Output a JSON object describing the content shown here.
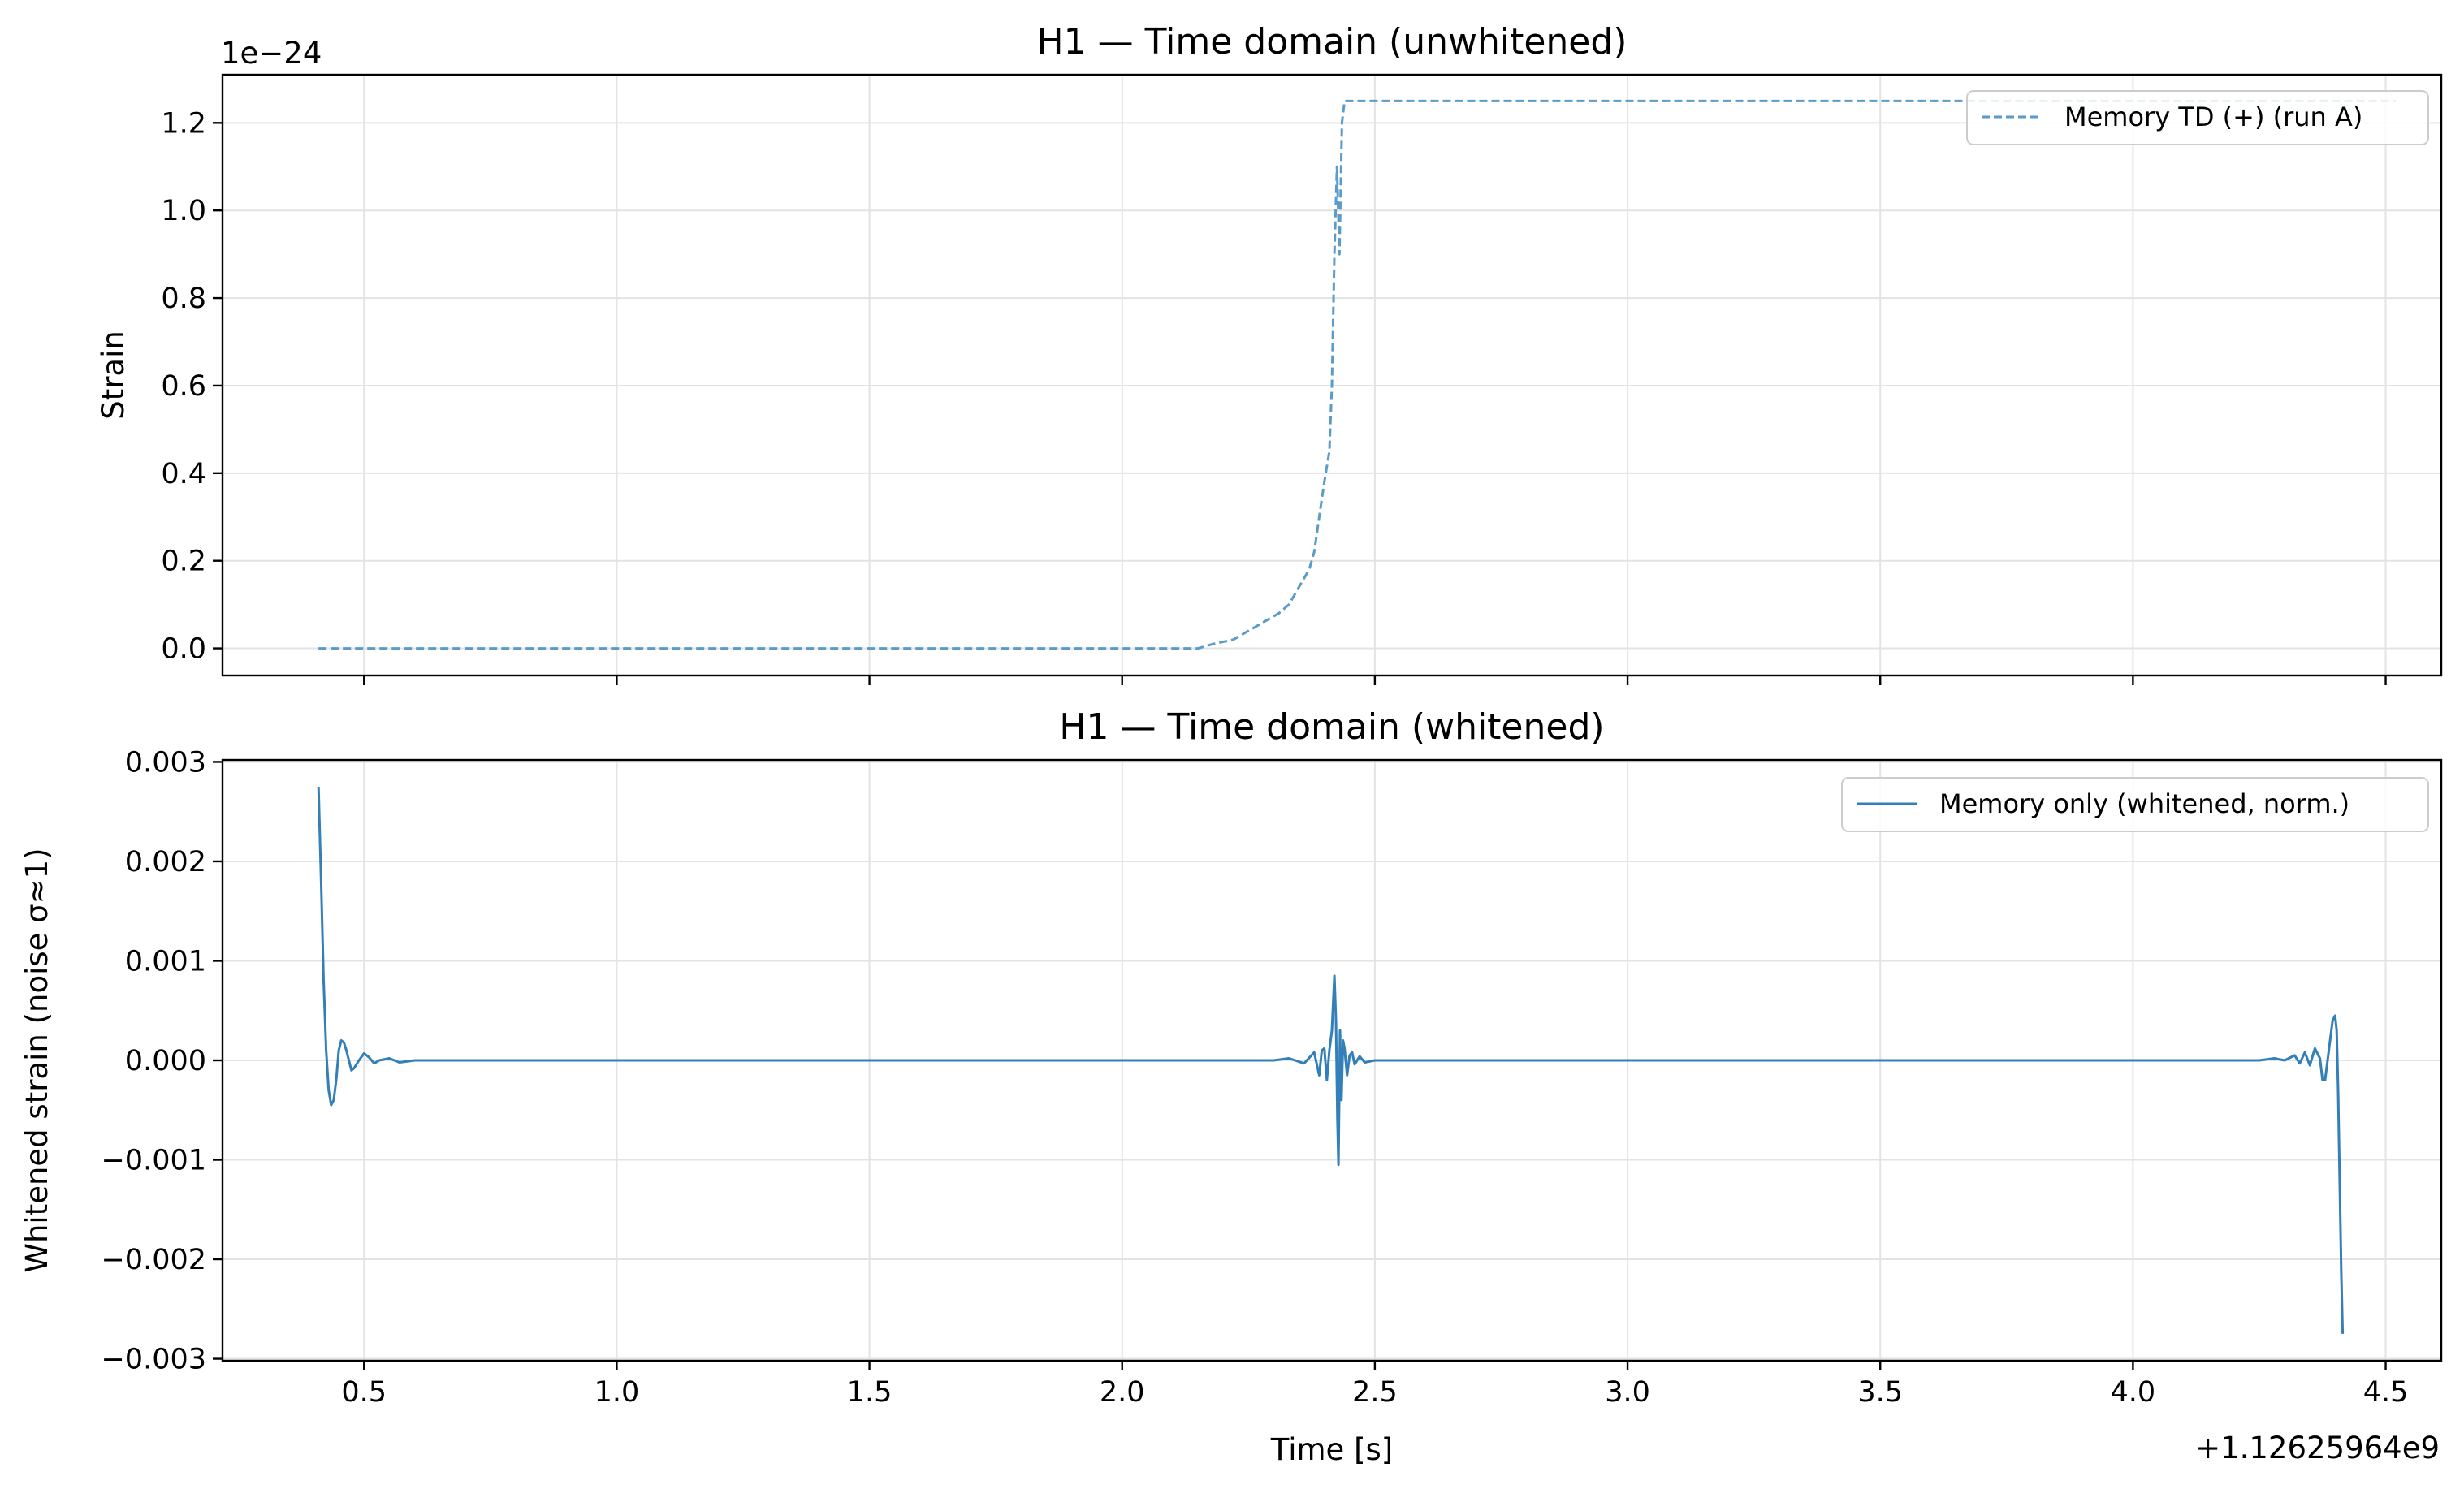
{
  "chart_data": [
    {
      "type": "line",
      "title": "H1 — Time domain (unwhitened)",
      "xlabel": "",
      "ylabel": "Strain",
      "y_scale_label": "1e−24",
      "xlim": [
        0.22,
        4.61
      ],
      "ylim": [
        -0.062,
        1.31
      ],
      "grid": true,
      "legend_position": "top-right",
      "x_ticks": [
        0.5,
        1.0,
        1.5,
        2.0,
        2.5,
        3.0,
        3.5,
        4.0,
        4.5
      ],
      "x_tick_labels_visible": false,
      "y_ticks": [
        0.0,
        0.2,
        0.4,
        0.6,
        0.8,
        1.0,
        1.2
      ],
      "y_tick_labels": [
        "0.0",
        "0.2",
        "0.4",
        "0.6",
        "0.8",
        "1.0",
        "1.2"
      ],
      "series": [
        {
          "name": "Memory TD (+) (run A)",
          "color": "#5b9bc8",
          "style": "dashed",
          "points": [
            [
              0.41,
              0.0
            ],
            [
              2.15,
              0.0
            ],
            [
              2.18,
              0.01
            ],
            [
              2.22,
              0.02
            ],
            [
              2.25,
              0.04
            ],
            [
              2.28,
              0.06
            ],
            [
              2.31,
              0.08
            ],
            [
              2.33,
              0.1
            ],
            [
              2.35,
              0.14
            ],
            [
              2.37,
              0.18
            ],
            [
              2.38,
              0.22
            ],
            [
              2.39,
              0.3
            ],
            [
              2.4,
              0.38
            ],
            [
              2.41,
              0.45
            ],
            [
              2.415,
              0.6
            ],
            [
              2.42,
              0.9
            ],
            [
              2.425,
              1.1
            ],
            [
              2.43,
              0.9
            ],
            [
              2.435,
              1.2
            ],
            [
              2.44,
              1.25
            ],
            [
              4.52,
              1.25
            ]
          ]
        }
      ]
    },
    {
      "type": "line",
      "title": "H1 — Time domain (whitened)",
      "xlabel": "Time [s]",
      "ylabel": "Whitened strain (noise σ≈1)",
      "x_offset_label": "+1.12625964e9",
      "xlim": [
        0.22,
        4.61
      ],
      "ylim": [
        -0.00302,
        0.00302
      ],
      "grid": true,
      "legend_position": "top-right",
      "x_ticks": [
        0.5,
        1.0,
        1.5,
        2.0,
        2.5,
        3.0,
        3.5,
        4.0,
        4.5
      ],
      "x_tick_labels": [
        "0.5",
        "1.0",
        "1.5",
        "2.0",
        "2.5",
        "3.0",
        "3.5",
        "4.0",
        "4.5"
      ],
      "y_ticks": [
        -0.003,
        -0.002,
        -0.001,
        0.0,
        0.001,
        0.002,
        0.003
      ],
      "y_tick_labels": [
        "−0.003",
        "−0.002",
        "−0.001",
        "0.000",
        "0.001",
        "0.002",
        "0.003"
      ],
      "series": [
        {
          "name": "Memory only (whitened, norm.)",
          "color": "#3380b8",
          "style": "solid",
          "points": [
            [
              0.41,
              0.00275
            ],
            [
              0.415,
              0.0018
            ],
            [
              0.42,
              0.0008
            ],
            [
              0.425,
              0.0001
            ],
            [
              0.43,
              -0.0003
            ],
            [
              0.435,
              -0.00045
            ],
            [
              0.44,
              -0.0004
            ],
            [
              0.445,
              -0.0002
            ],
            [
              0.45,
              0.0001
            ],
            [
              0.455,
              0.0002
            ],
            [
              0.46,
              0.00018
            ],
            [
              0.465,
              0.0001
            ],
            [
              0.47,
              0.0
            ],
            [
              0.475,
              -0.0001
            ],
            [
              0.48,
              -8e-05
            ],
            [
              0.49,
              0.0
            ],
            [
              0.5,
              7e-05
            ],
            [
              0.51,
              3e-05
            ],
            [
              0.52,
              -3e-05
            ],
            [
              0.53,
              0.0
            ],
            [
              0.55,
              2e-05
            ],
            [
              0.57,
              -2e-05
            ],
            [
              0.6,
              0.0
            ],
            [
              2.3,
              0.0
            ],
            [
              2.33,
              2e-05
            ],
            [
              2.36,
              -3e-05
            ],
            [
              2.38,
              8e-05
            ],
            [
              2.39,
              -0.00015
            ],
            [
              2.395,
              0.0001
            ],
            [
              2.4,
              0.00012
            ],
            [
              2.405,
              -0.0002
            ],
            [
              2.41,
              0.0001
            ],
            [
              2.415,
              0.0003
            ],
            [
              2.42,
              0.00085
            ],
            [
              2.423,
              0.0004
            ],
            [
              2.426,
              -0.0006
            ],
            [
              2.428,
              -0.00105
            ],
            [
              2.431,
              0.0003
            ],
            [
              2.434,
              -0.0004
            ],
            [
              2.437,
              0.0002
            ],
            [
              2.44,
              0.00012
            ],
            [
              2.445,
              -0.00015
            ],
            [
              2.45,
              5e-05
            ],
            [
              2.455,
              8e-05
            ],
            [
              2.46,
              -4e-05
            ],
            [
              2.47,
              4e-05
            ],
            [
              2.48,
              -2e-05
            ],
            [
              2.5,
              0.0
            ],
            [
              4.25,
              0.0
            ],
            [
              4.28,
              2e-05
            ],
            [
              4.3,
              0.0
            ],
            [
              4.32,
              5e-05
            ],
            [
              4.33,
              -3e-05
            ],
            [
              4.34,
              8e-05
            ],
            [
              4.35,
              -5e-05
            ],
            [
              4.36,
              0.00012
            ],
            [
              4.37,
              2e-05
            ],
            [
              4.375,
              -0.0002
            ],
            [
              4.38,
              -0.0002
            ],
            [
              4.385,
              0.0
            ],
            [
              4.39,
              0.0002
            ],
            [
              4.395,
              0.0004
            ],
            [
              4.4,
              0.00045
            ],
            [
              4.403,
              0.0003
            ],
            [
              4.406,
              -0.0003
            ],
            [
              4.409,
              -0.0012
            ],
            [
              4.412,
              -0.0021
            ],
            [
              4.415,
              -0.00275
            ]
          ]
        }
      ]
    }
  ]
}
